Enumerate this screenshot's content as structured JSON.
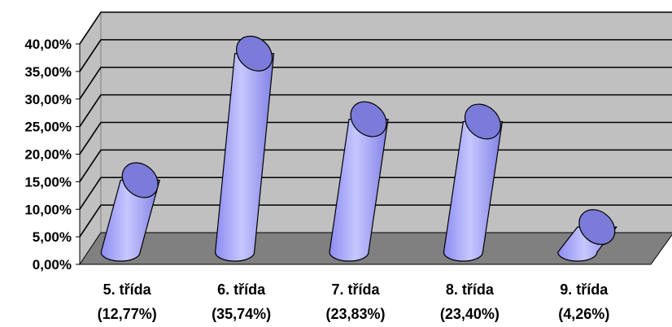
{
  "chart_data": {
    "type": "bar",
    "style": "3d-cylinder",
    "title": "",
    "xlabel": "",
    "ylabel": "",
    "ylim": [
      0,
      40
    ],
    "y_ticks": [
      "0,00%",
      "5,00%",
      "10,00%",
      "15,00%",
      "20,00%",
      "25,00%",
      "30,00%",
      "35,00%",
      "40,00%"
    ],
    "categories": [
      {
        "name": "5. třída",
        "value_label": "(12,77%)"
      },
      {
        "name": "6. třída",
        "value_label": "(35,74%)"
      },
      {
        "name": "7. třída",
        "value_label": "(23,83%)"
      },
      {
        "name": "8. třída",
        "value_label": "(23,40%)"
      },
      {
        "name": "9. třída",
        "value_label": "(4,26%)"
      }
    ],
    "values": [
      12.77,
      35.74,
      23.83,
      23.4,
      4.26
    ],
    "grid": true,
    "legend": "none",
    "colors": {
      "bar_body": "#9999ff",
      "bar_body_light": "#c7c7ff",
      "bar_top": "#7b7bd9",
      "bar_outline": "#000000",
      "back_wall": "#c0c0c0",
      "floor": "#808080",
      "gridline": "#000000"
    }
  }
}
